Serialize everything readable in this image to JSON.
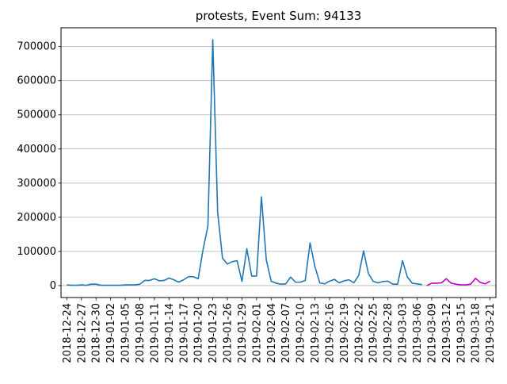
{
  "chart_data": {
    "type": "line",
    "title": "protests, Event Sum: 94133",
    "xlabel": "",
    "ylabel": "",
    "ylim": [
      -35000,
      755000
    ],
    "grid": "horizontal",
    "y_ticks": [
      0,
      100000,
      200000,
      300000,
      400000,
      500000,
      600000,
      700000
    ],
    "y_tick_labels": [
      "0",
      "100000",
      "200000",
      "300000",
      "400000",
      "500000",
      "600000",
      "700000"
    ],
    "x_tick_labels": [
      "2018-12-24",
      "2018-12-27",
      "2018-12-30",
      "2019-01-02",
      "2019-01-05",
      "2019-01-08",
      "2019-01-11",
      "2019-01-14",
      "2019-01-17",
      "2019-01-20",
      "2019-01-23",
      "2019-01-26",
      "2019-01-29",
      "2019-02-01",
      "2019-02-04",
      "2019-02-07",
      "2019-02-10",
      "2019-02-13",
      "2019-02-16",
      "2019-02-19",
      "2019-02-22",
      "2019-02-25",
      "2019-02-28",
      "2019-03-03",
      "2019-03-06",
      "2019-03-09",
      "2019-03-12",
      "2019-03-15",
      "2019-03-18",
      "2019-03-21"
    ],
    "series": [
      {
        "color": "#1f77b4",
        "x": [
          "2018-12-24",
          "2018-12-25",
          "2018-12-26",
          "2018-12-27",
          "2018-12-28",
          "2018-12-29",
          "2018-12-30",
          "2018-12-31",
          "2019-01-01",
          "2019-01-02",
          "2019-01-03",
          "2019-01-04",
          "2019-01-05",
          "2019-01-06",
          "2019-01-07",
          "2019-01-08",
          "2019-01-09",
          "2019-01-10",
          "2019-01-11",
          "2019-01-12",
          "2019-01-13",
          "2019-01-14",
          "2019-01-15",
          "2019-01-16",
          "2019-01-17",
          "2019-01-18",
          "2019-01-19",
          "2019-01-20",
          "2019-01-21",
          "2019-01-22",
          "2019-01-23",
          "2019-01-24",
          "2019-01-25",
          "2019-01-26",
          "2019-01-27",
          "2019-01-28",
          "2019-01-29",
          "2019-01-30",
          "2019-01-31",
          "2019-02-01",
          "2019-02-02",
          "2019-02-03",
          "2019-02-04",
          "2019-02-05",
          "2019-02-06",
          "2019-02-07",
          "2019-02-08",
          "2019-02-09",
          "2019-02-10",
          "2019-02-11",
          "2019-02-12",
          "2019-02-13",
          "2019-02-14",
          "2019-02-15",
          "2019-02-16",
          "2019-02-17",
          "2019-02-18",
          "2019-02-19",
          "2019-02-20",
          "2019-02-21",
          "2019-02-22",
          "2019-02-23",
          "2019-02-24",
          "2019-02-25",
          "2019-02-26",
          "2019-02-27",
          "2019-02-28",
          "2019-03-01",
          "2019-03-02",
          "2019-03-03",
          "2019-03-04",
          "2019-03-05",
          "2019-03-06",
          "2019-03-07"
        ],
        "values": [
          2000,
          1000,
          1000,
          2000,
          1000,
          4000,
          4000,
          1000,
          1000,
          1000,
          1000,
          1000,
          2000,
          2000,
          2000,
          4000,
          15000,
          15000,
          20000,
          14000,
          15000,
          22000,
          17000,
          10000,
          17000,
          26000,
          26000,
          20000,
          105000,
          175000,
          720000,
          215000,
          80000,
          63000,
          70000,
          73000,
          12000,
          108000,
          28000,
          28000,
          260000,
          75000,
          13000,
          7000,
          4000,
          5000,
          25000,
          10000,
          10000,
          15000,
          125000,
          55000,
          8000,
          5000,
          13000,
          18000,
          8000,
          14000,
          17000,
          8000,
          30000,
          102000,
          35000,
          12000,
          8000,
          12000,
          13000,
          4000,
          4000,
          73000,
          25000,
          7000,
          5000,
          3000
        ]
      },
      {
        "color": "#bf00bf",
        "x": [
          "2019-03-08",
          "2019-03-09",
          "2019-03-10",
          "2019-03-11",
          "2019-03-12",
          "2019-03-13",
          "2019-03-14",
          "2019-03-15",
          "2019-03-16",
          "2019-03-17",
          "2019-03-18",
          "2019-03-19",
          "2019-03-20",
          "2019-03-21"
        ],
        "values": [
          0,
          7000,
          7000,
          8000,
          20000,
          7000,
          4000,
          2000,
          2000,
          4000,
          21000,
          9000,
          5000,
          13000
        ]
      }
    ]
  }
}
